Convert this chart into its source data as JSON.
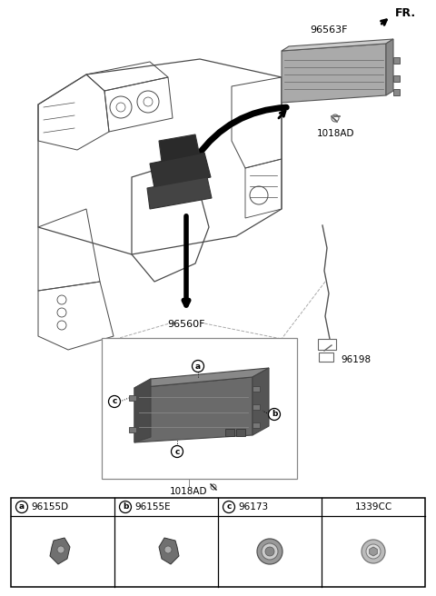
{
  "bg_color": "#ffffff",
  "fr_label": "FR.",
  "part_96563F": "96563F",
  "part_1018AD": "1018AD",
  "part_96560F": "96560F",
  "part_96198": "96198",
  "part_1018AD_2": "1018AD",
  "ref_a": "a",
  "ref_b": "b",
  "ref_c": "c",
  "tbl_codes": [
    "96155D",
    "96155E",
    "96173",
    "1339CC"
  ],
  "tbl_refs": [
    "a",
    "b",
    "c",
    ""
  ],
  "fig_width": 4.8,
  "fig_height": 6.56,
  "dpi": 100
}
